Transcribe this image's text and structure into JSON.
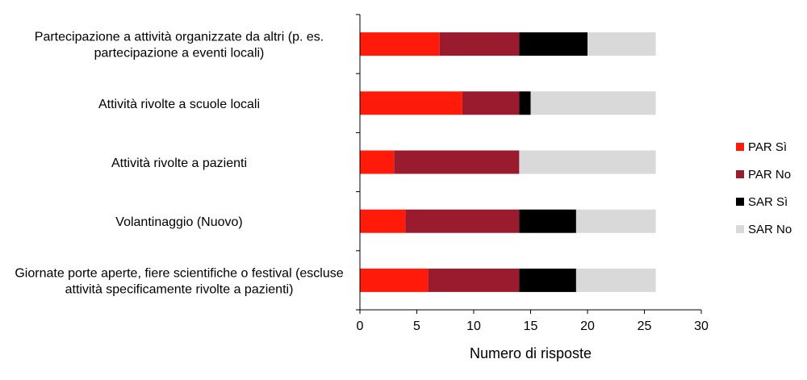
{
  "chart_data": {
    "type": "bar",
    "orientation": "horizontal",
    "stacked": true,
    "categories": [
      [
        "Partecipazione a attività organizzate da altri (p. es.",
        "partecipazione a eventi locali)"
      ],
      [
        "Attività rivolte a scuole locali"
      ],
      [
        "Attività rivolte a pazienti"
      ],
      [
        "Volantinaggio (Nuovo)"
      ],
      [
        "Giornate porte aperte, fiere scientifiche o festival (escluse",
        "attività specificamente rivolte a pazienti)"
      ]
    ],
    "series": [
      {
        "name": "PAR Sì",
        "color": "#ff1a0a",
        "values": [
          7,
          9,
          3,
          4,
          6
        ]
      },
      {
        "name": "PAR No",
        "color": "#9b1b2e",
        "values": [
          7,
          5,
          11,
          10,
          8
        ]
      },
      {
        "name": "SAR Sì",
        "color": "#000000",
        "values": [
          6,
          1,
          0,
          5,
          5
        ]
      },
      {
        "name": "SAR No",
        "color": "#d9d9d9",
        "values": [
          6,
          11,
          12,
          7,
          7
        ]
      }
    ],
    "xlabel": "Numero di risposte",
    "xlim": [
      0,
      30
    ],
    "xticks": [
      0,
      5,
      10,
      15,
      20,
      25,
      30
    ],
    "grid": false,
    "legend_position": "right"
  }
}
